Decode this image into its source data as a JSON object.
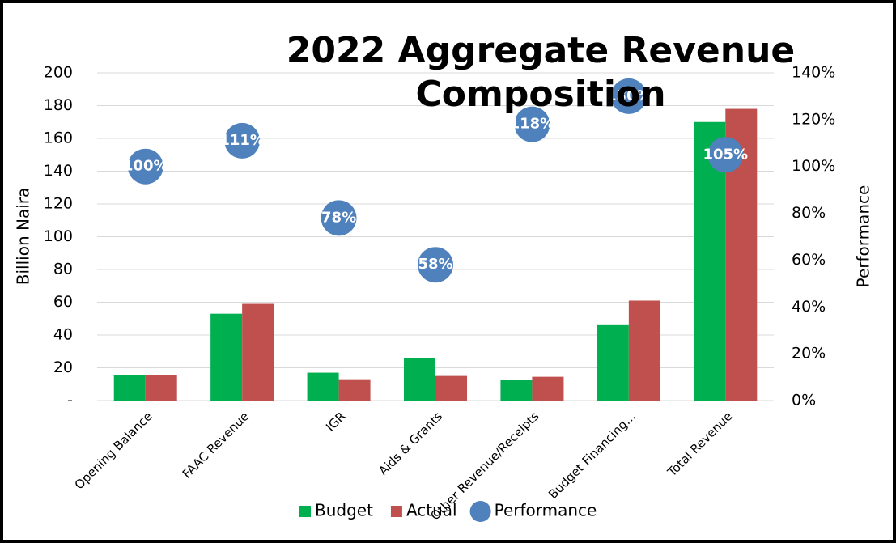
{
  "chart_data": {
    "type": "bar",
    "title": "2022 Aggregate Revenue Composition",
    "ylabel": "Billion Naira",
    "y2label": "Performance",
    "categories": [
      "Opening Balance",
      "FAAC Revenue",
      "IGR",
      "Aids & Grants",
      "Other Revenue/Receipts",
      "Budget Financing...",
      "Total Revenue"
    ],
    "series": [
      {
        "name": "Budget",
        "color": "#00b050",
        "values": [
          15.5,
          53,
          17,
          26,
          12.5,
          46.5,
          170
        ]
      },
      {
        "name": "Actual",
        "color": "#c0504d",
        "values": [
          15.5,
          59,
          13,
          15,
          14.5,
          61,
          178
        ]
      },
      {
        "name": "Performance",
        "color": "#4f81bd",
        "axis": "y2",
        "type": "scatter",
        "values": [
          100,
          111,
          78,
          58,
          118,
          130,
          105
        ],
        "value_labels": [
          "100%",
          "111%",
          "78%",
          "58%",
          "118%",
          "130%",
          "105%"
        ]
      }
    ],
    "ylim": [
      0,
      200
    ],
    "yticks": [
      {
        "value": 0,
        "label": "-"
      },
      20,
      40,
      60,
      80,
      100,
      120,
      140,
      160,
      180,
      200
    ],
    "y2lim": [
      0,
      140
    ],
    "y2ticks": [
      {
        "value": 0,
        "label": "0%"
      },
      {
        "value": 20,
        "label": "20%"
      },
      {
        "value": 40,
        "label": "40%"
      },
      {
        "value": 60,
        "label": "60%"
      },
      {
        "value": 80,
        "label": "80%"
      },
      {
        "value": 100,
        "label": "100%"
      },
      {
        "value": 120,
        "label": "120%"
      },
      {
        "value": 140,
        "label": "140%"
      }
    ],
    "grid": true,
    "legend": "bottom"
  }
}
